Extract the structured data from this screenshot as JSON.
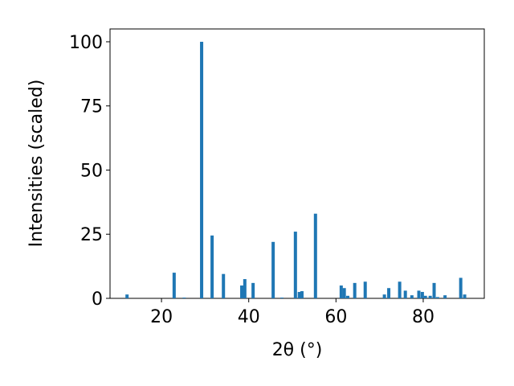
{
  "chart_data": {
    "type": "bar",
    "xlabel": "2θ (°)",
    "ylabel": "Intensities (scaled)",
    "color": "#1f77b4",
    "x": [
      12.1,
      22.9,
      25.2,
      29.2,
      31.6,
      34.2,
      38.4,
      39.1,
      41.0,
      45.6,
      47.6,
      50.7,
      51.6,
      52.2,
      55.3,
      61.2,
      61.9,
      62.7,
      64.3,
      66.7,
      71.1,
      72.1,
      74.6,
      75.9,
      77.4,
      79.0,
      79.8,
      80.5,
      81.6,
      82.5,
      83.3,
      85.0,
      88.6,
      89.5
    ],
    "values": [
      1.5,
      10,
      0.3,
      100,
      24.5,
      9.5,
      5,
      7.5,
      6,
      22,
      0.3,
      26,
      2.5,
      2.8,
      33,
      5,
      4,
      1,
      6,
      6.5,
      1.5,
      4,
      6.5,
      3,
      1.2,
      3,
      2.5,
      1,
      1,
      6,
      0.5,
      1.2,
      8,
      1.5
    ],
    "xlim": [
      8.2,
      94
    ],
    "ylim": [
      0,
      105
    ],
    "xticks": [
      20,
      40,
      60,
      80
    ],
    "yticks": [
      0,
      25,
      50,
      75,
      100
    ]
  }
}
